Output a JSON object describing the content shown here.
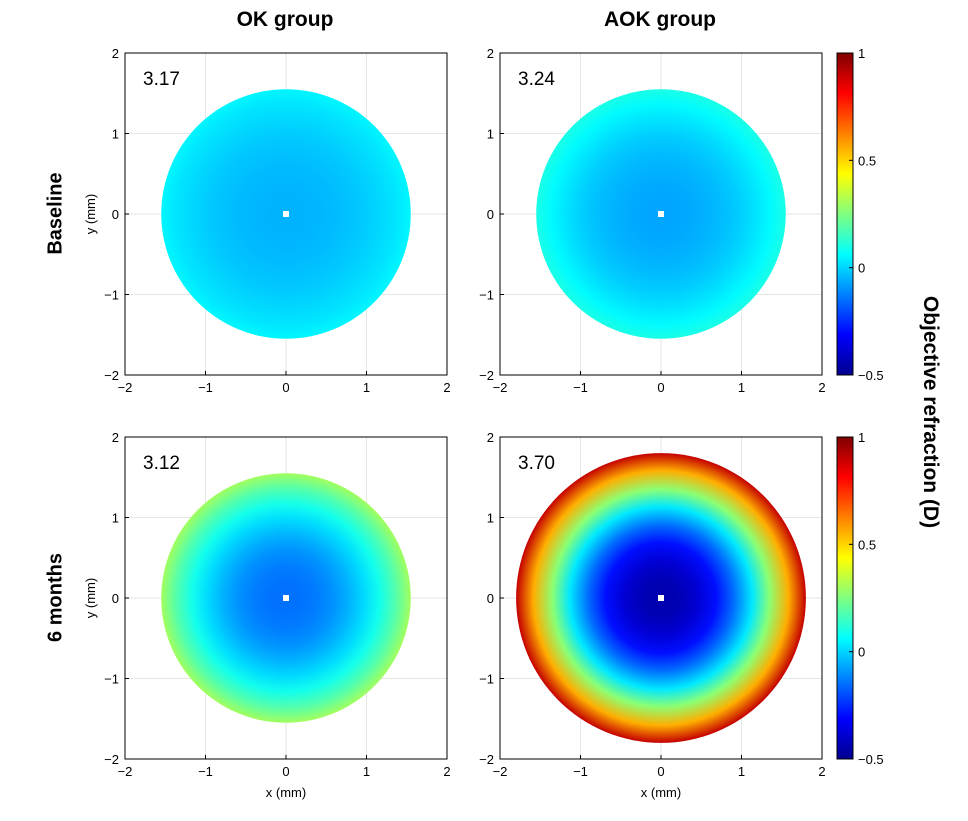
{
  "column_titles": [
    "OK group",
    "AOK group"
  ],
  "row_titles": [
    "Baseline",
    "6 months"
  ],
  "colorbar_label": "Objective refraction (D)",
  "colorbar_ticks": [
    "1",
    "0.5",
    "0",
    "−0.5"
  ],
  "colors": {
    "jet": [
      "#00008f",
      "#0000ff",
      "#0080ff",
      "#00ffff",
      "#80ff80",
      "#ffff00",
      "#ff8000",
      "#ff0000",
      "#800000"
    ],
    "grid": "#e6e6e6",
    "center_marker": "#ffffff"
  },
  "chart_data": [
    {
      "type": "heatmap",
      "group": "OK group",
      "timepoint": "Baseline",
      "annotation": "3.17",
      "xlabel": "",
      "ylabel": "y (mm)",
      "xlim": [
        -2,
        2
      ],
      "ylim": [
        -2,
        2
      ],
      "xticks": [
        "−2",
        "−1",
        "0",
        "1",
        "2"
      ],
      "yticks": [
        "2",
        "1",
        "0",
        "−1",
        "−2"
      ],
      "zone_radius_mm": 1.55,
      "color_range": [
        -0.5,
        1
      ],
      "center_value": -0.05,
      "edge_value": 0.05
    },
    {
      "type": "heatmap",
      "group": "AOK group",
      "timepoint": "Baseline",
      "annotation": "3.24",
      "xlabel": "",
      "ylabel": "",
      "xlim": [
        -2,
        2
      ],
      "ylim": [
        -2,
        2
      ],
      "xticks": [
        "−2",
        "−1",
        "0",
        "1",
        "2"
      ],
      "yticks": [
        "2",
        "1",
        "0",
        "−1",
        "−2"
      ],
      "zone_radius_mm": 1.55,
      "color_range": [
        -0.5,
        1
      ],
      "center_value": -0.07,
      "edge_value": 0.1
    },
    {
      "type": "heatmap",
      "group": "OK group",
      "timepoint": "6 months",
      "annotation": "3.12",
      "xlabel": "x (mm)",
      "ylabel": "y (mm)",
      "xlim": [
        -2,
        2
      ],
      "ylim": [
        -2,
        2
      ],
      "xticks": [
        "−2",
        "−1",
        "0",
        "1",
        "2"
      ],
      "yticks": [
        "2",
        "1",
        "0",
        "−1",
        "−2"
      ],
      "zone_radius_mm": 1.55,
      "color_range": [
        -0.5,
        1
      ],
      "center_value": -0.15,
      "edge_value": 0.3
    },
    {
      "type": "heatmap",
      "group": "AOK group",
      "timepoint": "6 months",
      "annotation": "3.70",
      "xlabel": "x (mm)",
      "ylabel": "",
      "xlim": [
        -2,
        2
      ],
      "ylim": [
        -2,
        2
      ],
      "xticks": [
        "−2",
        "−1",
        "0",
        "1",
        "2"
      ],
      "yticks": [
        "2",
        "1",
        "0",
        "−1",
        "−2"
      ],
      "zone_radius_mm": 1.8,
      "color_range": [
        -0.5,
        1
      ],
      "center_value": -0.45,
      "edge_value": 0.9
    }
  ]
}
